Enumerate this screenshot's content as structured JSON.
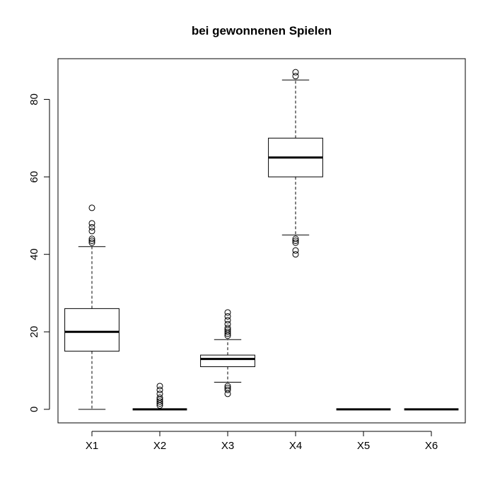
{
  "chart_data": {
    "type": "boxplot",
    "title": "bei gewonnenen Spielen",
    "xlabel": "",
    "ylabel": "",
    "categories": [
      "X1",
      "X2",
      "X3",
      "X4",
      "X5",
      "X6"
    ],
    "ylim": [
      -3.5,
      90.5
    ],
    "yticks": [
      0,
      20,
      40,
      60,
      80
    ],
    "grid": false,
    "legend": "none",
    "boxes": [
      {
        "name": "X1",
        "whisker_low": 0,
        "q1": 15,
        "median": 20,
        "q3": 26,
        "whisker_high": 42,
        "outliers": [
          43,
          43.5,
          44,
          46,
          47,
          48,
          52
        ]
      },
      {
        "name": "X2",
        "whisker_low": 0,
        "q1": 0,
        "median": 0,
        "q3": 0,
        "whisker_high": 0,
        "outliers": [
          1,
          1.5,
          2,
          2.5,
          3,
          4,
          5,
          6
        ]
      },
      {
        "name": "X3",
        "whisker_low": 7,
        "q1": 11,
        "median": 13,
        "q3": 14,
        "whisker_high": 18,
        "outliers": [
          4,
          5,
          5.5,
          6,
          19,
          19.5,
          20,
          20.5,
          21,
          22,
          23,
          24,
          25
        ]
      },
      {
        "name": "X4",
        "whisker_low": 45,
        "q1": 60,
        "median": 65,
        "q3": 70,
        "whisker_high": 85,
        "outliers": [
          40,
          41,
          43,
          43.5,
          44,
          86,
          87
        ]
      },
      {
        "name": "X5",
        "whisker_low": 0,
        "q1": 0,
        "median": 0,
        "q3": 0,
        "whisker_high": 0,
        "outliers": []
      },
      {
        "name": "X6",
        "whisker_low": 0,
        "q1": 0,
        "median": 0,
        "q3": 0,
        "whisker_high": 0,
        "outliers": []
      }
    ]
  }
}
